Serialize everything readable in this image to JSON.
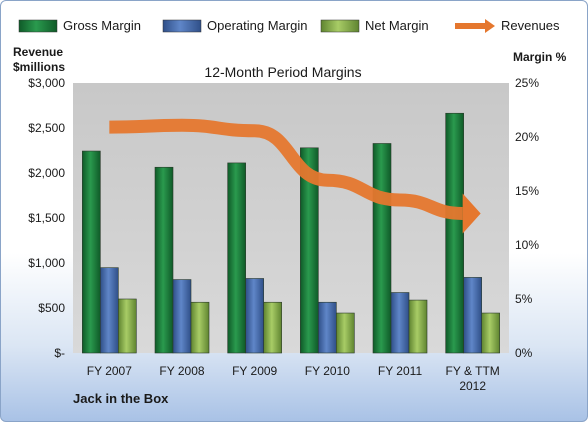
{
  "chart_data": {
    "type": "bar",
    "title": "12-Month Period Margins",
    "footer": "Jack in the Box",
    "categories": [
      "FY 2007",
      "FY 2008",
      "FY 2009",
      "FY 2010",
      "FY 2011",
      "FY & TTM 2012"
    ],
    "series": [
      {
        "name": "Gross Margin",
        "axis": "right",
        "values": [
          18.7,
          17.2,
          17.6,
          19.0,
          19.4,
          22.2
        ],
        "color": "#1f7a3c"
      },
      {
        "name": "Operating Margin",
        "axis": "right",
        "values": [
          7.9,
          6.8,
          6.9,
          4.7,
          5.6,
          7.0
        ],
        "color": "#4a6fb0"
      },
      {
        "name": "Net Margin",
        "axis": "right",
        "values": [
          5.0,
          4.7,
          4.7,
          3.7,
          4.9,
          3.7
        ],
        "color": "#8bb04a"
      },
      {
        "name": "Revenues",
        "type": "line",
        "axis": "left",
        "values": [
          2510,
          2530,
          2470,
          1920,
          1700,
          1550
        ],
        "color": "#e5772e"
      }
    ],
    "left_axis": {
      "label_line1": "Revenue",
      "label_line2": "$millions",
      "ylim": [
        0,
        3000
      ],
      "ticks": [
        "$-",
        "$500",
        "$1,000",
        "$1,500",
        "$2,000",
        "$2,500",
        "$3,000"
      ]
    },
    "right_axis": {
      "label": "Margin %",
      "ylim": [
        0,
        25
      ],
      "ticks": [
        "0%",
        "5%",
        "10%",
        "15%",
        "20%",
        "25%"
      ]
    },
    "category_labels": [
      [
        "FY 2007"
      ],
      [
        "FY 2008"
      ],
      [
        "FY 2009"
      ],
      [
        "FY 2010"
      ],
      [
        "FY 2011"
      ],
      [
        "FY & TTM",
        "2012"
      ]
    ],
    "legend_position": "top",
    "grid": false
  }
}
